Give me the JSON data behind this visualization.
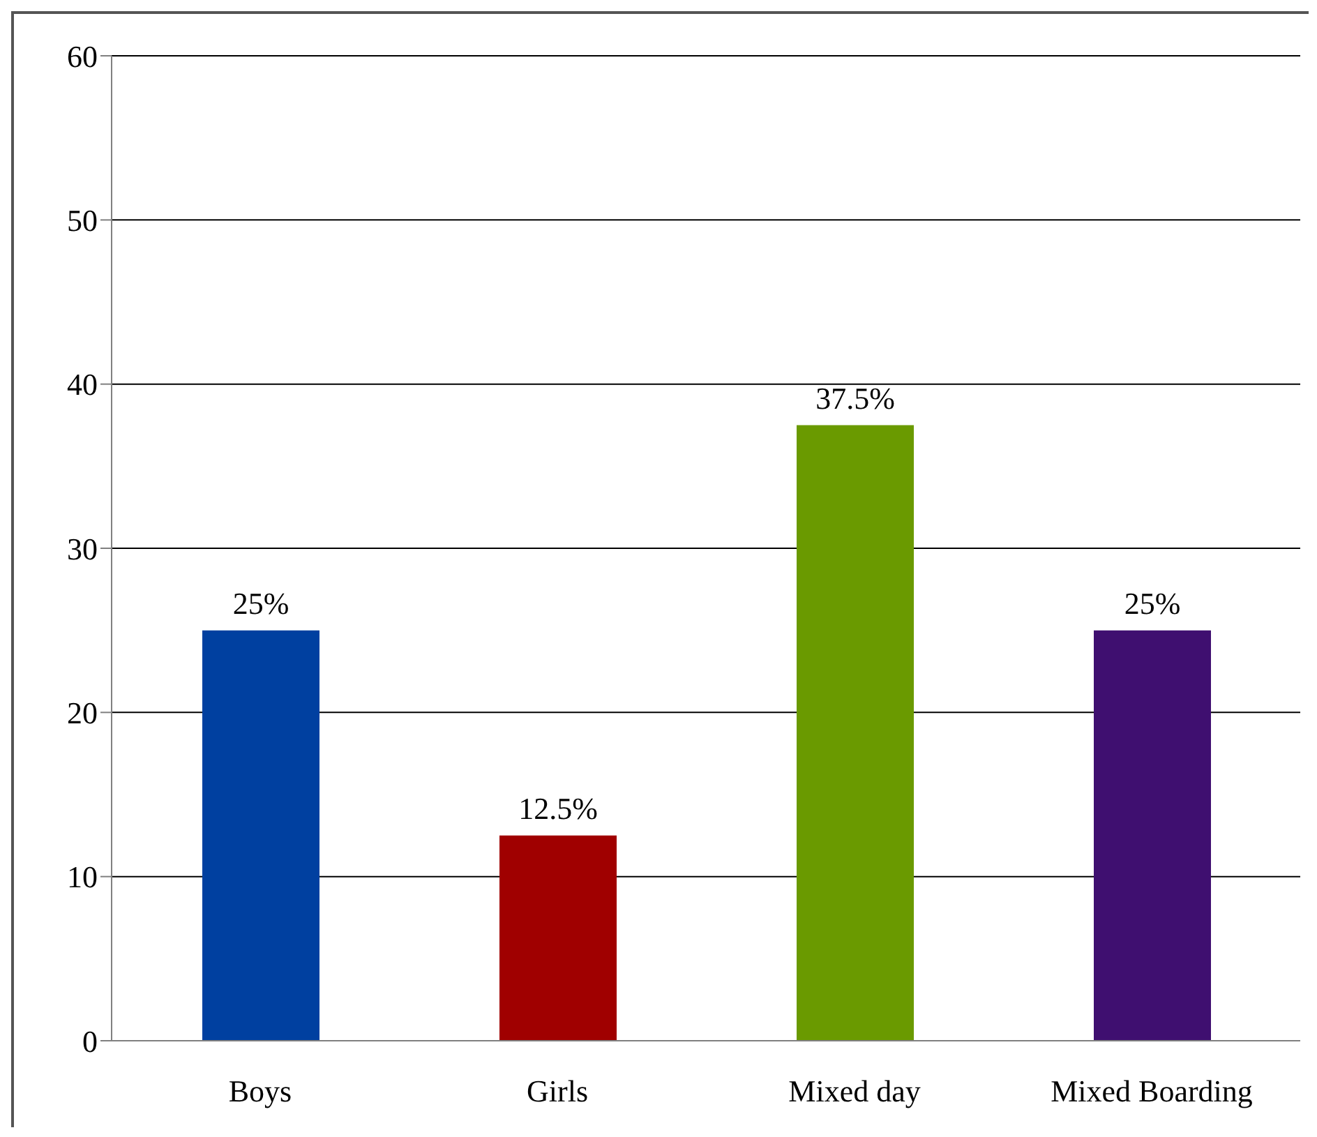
{
  "chart_data": {
    "type": "bar",
    "categories": [
      "Boys",
      "Girls",
      "Mixed day",
      "Mixed Boarding"
    ],
    "values": [
      25,
      12.5,
      37.5,
      25
    ],
    "colors": [
      "#0040a0",
      "#a00000",
      "#6a9a00",
      "#3f0f70"
    ],
    "value_labels": [
      "25%",
      "12.5%",
      "37.5%",
      "25%"
    ],
    "ylim": [
      0,
      60
    ],
    "yticks": [
      0,
      10,
      20,
      30,
      40,
      50,
      60
    ],
    "grid": "y"
  }
}
